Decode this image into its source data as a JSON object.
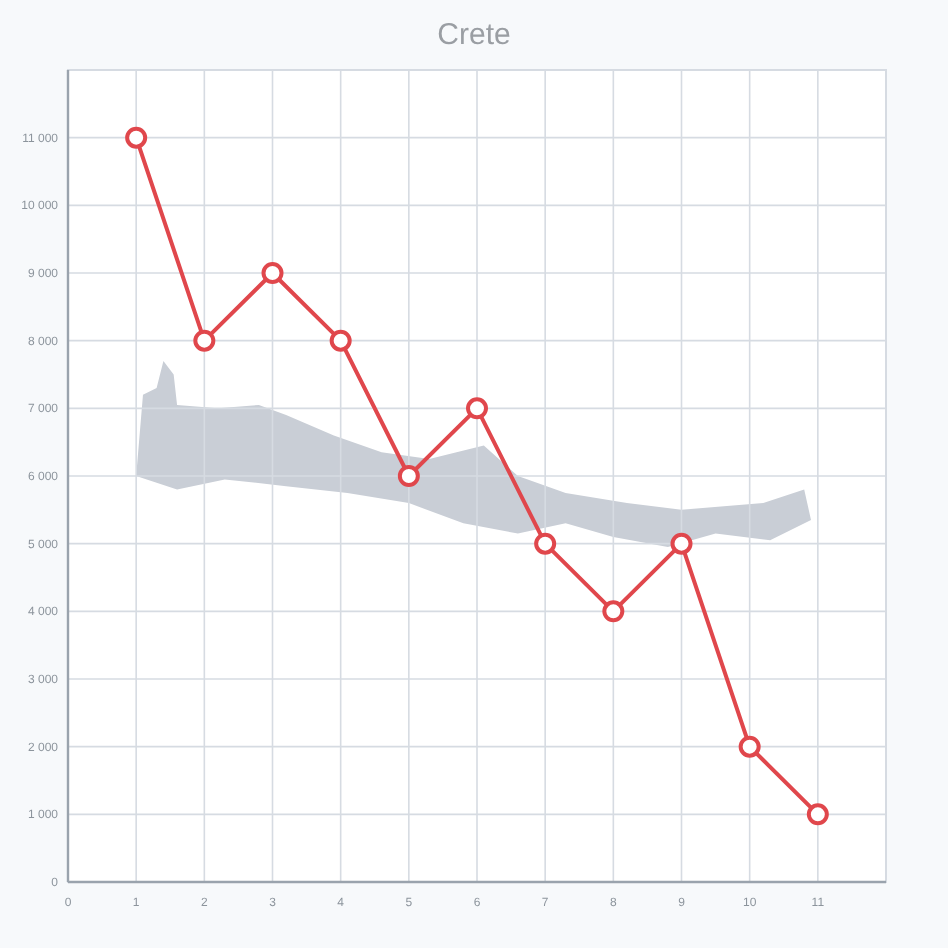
{
  "chart_data": {
    "type": "line",
    "title": "Crete",
    "x": [
      1,
      2,
      3,
      4,
      5,
      6,
      7,
      8,
      9,
      10,
      11
    ],
    "series": [
      {
        "color": "#e0474c",
        "values": [
          11000,
          8000,
          9000,
          8000,
          6000,
          7000,
          5000,
          4000,
          5000,
          2000,
          1000
        ]
      }
    ],
    "xlim": [
      0,
      12
    ],
    "xticks": [
      0,
      1,
      2,
      3,
      4,
      5,
      6,
      7,
      8,
      9,
      10,
      11
    ],
    "ylim": [
      0,
      12000
    ],
    "yticks": [
      0,
      {
        "value": 1000,
        "label": "1 000"
      },
      {
        "value": 2000,
        "label": "2 000"
      },
      {
        "value": 3000,
        "label": "3 000"
      },
      {
        "value": 4000,
        "label": "4 000"
      },
      {
        "value": 5000,
        "label": "5 000"
      },
      {
        "value": 6000,
        "label": "6 000"
      },
      {
        "value": 7000,
        "label": "7 000"
      },
      {
        "value": 8000,
        "label": "8 000"
      },
      {
        "value": 9000,
        "label": "9 000"
      },
      {
        "value": 10000,
        "label": "10 000"
      },
      {
        "value": 11000,
        "label": "11 000"
      }
    ],
    "grid": true,
    "marker": "circle",
    "line_style": "solid"
  }
}
